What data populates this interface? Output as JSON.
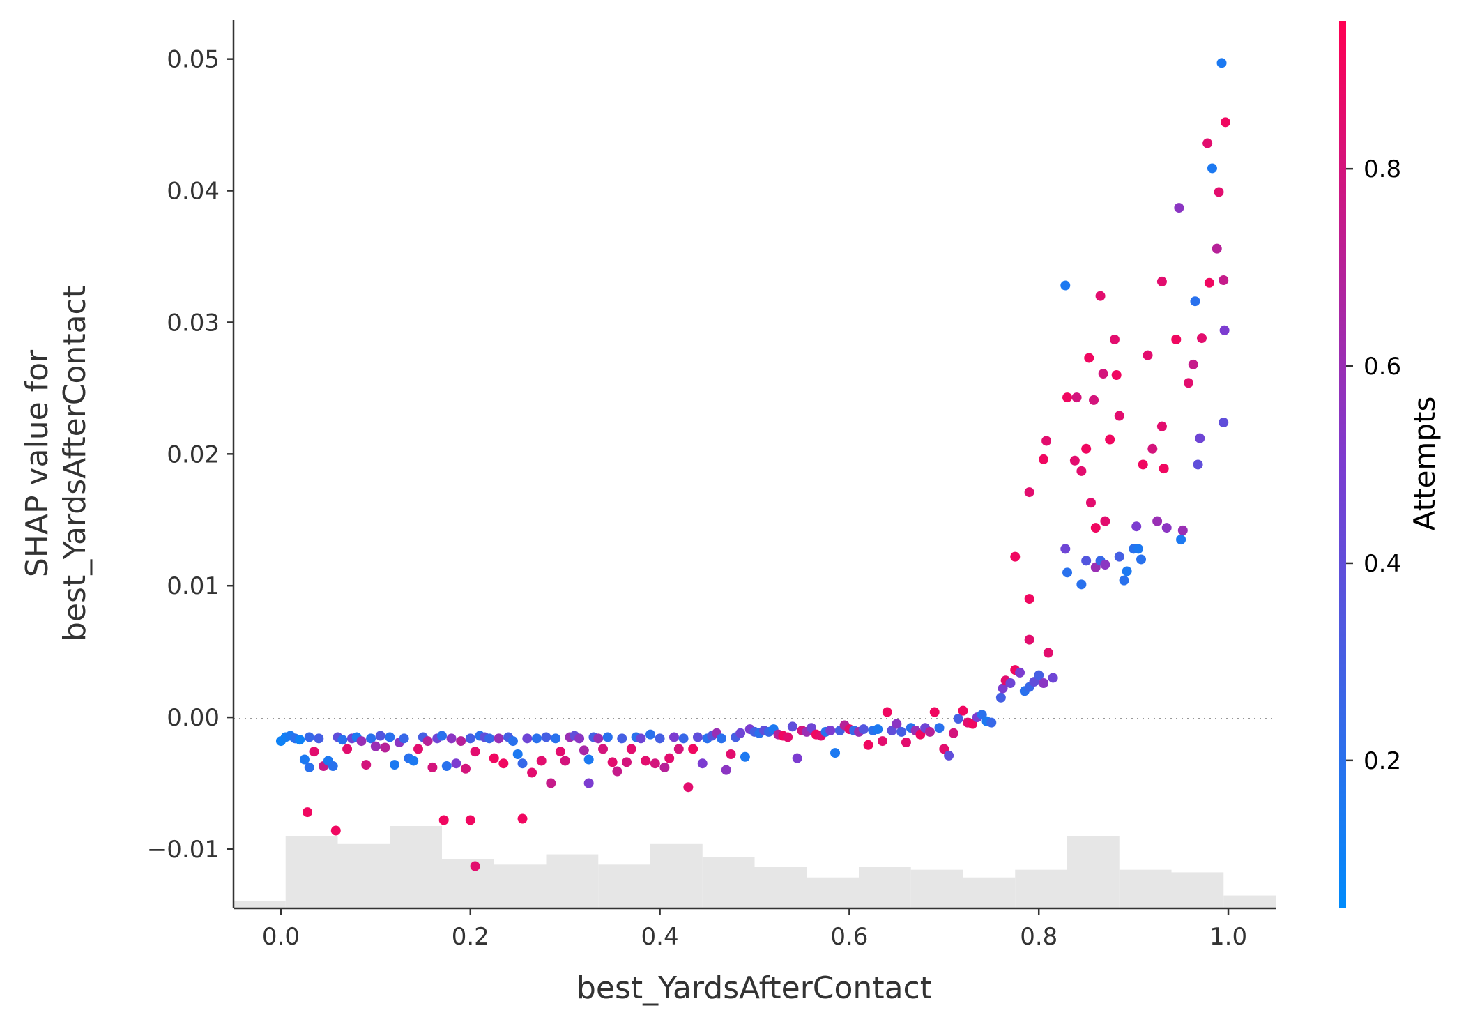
{
  "chart_data": {
    "type": "scatter",
    "xlabel": "best_YardsAfterContact",
    "ylabel_lines": [
      "SHAP value for",
      "best_YardsAfterContact"
    ],
    "xlim": [
      -0.05,
      1.05
    ],
    "ylim": [
      -0.0145,
      0.053
    ],
    "x_ticks": [
      0.0,
      0.2,
      0.4,
      0.6,
      0.8,
      1.0
    ],
    "x_tick_labels": [
      "0.0",
      "0.2",
      "0.4",
      "0.6",
      "0.8",
      "1.0"
    ],
    "y_ticks": [
      -0.01,
      0.0,
      0.01,
      0.02,
      0.03,
      0.04,
      0.05
    ],
    "y_tick_labels": [
      "−0.01",
      "0.00",
      "0.01",
      "0.02",
      "0.03",
      "0.04",
      "0.05"
    ],
    "zero_line": true,
    "grid": false,
    "colorbar": {
      "title": "Attempts",
      "range": [
        0.05,
        0.95
      ],
      "ticks": [
        0.2,
        0.4,
        0.6,
        0.8
      ],
      "tick_labels": [
        "0.2",
        "0.4",
        "0.6",
        "0.8"
      ],
      "colormap_low": "#008bfb",
      "colormap_mid": "#7c3cd0",
      "colormap_high": "#ff0052"
    },
    "histogram": {
      "color": "#e6e6e6",
      "bin_edges": [
        -0.05,
        0.005,
        0.06,
        0.115,
        0.17,
        0.225,
        0.28,
        0.335,
        0.39,
        0.445,
        0.5,
        0.555,
        0.61,
        0.665,
        0.72,
        0.775,
        0.83,
        0.885,
        0.94,
        0.995,
        1.05
      ],
      "counts": [
        3,
        28,
        25,
        32,
        19,
        17,
        21,
        17,
        25,
        20,
        16,
        12,
        16,
        15,
        12,
        15,
        28,
        15,
        14,
        5
      ]
    },
    "points": [
      {
        "x": 0.0,
        "y": -0.0018,
        "c": 0.1
      },
      {
        "x": 0.005,
        "y": -0.0015,
        "c": 0.12
      },
      {
        "x": 0.01,
        "y": -0.0014,
        "c": 0.15
      },
      {
        "x": 0.015,
        "y": -0.0016,
        "c": 0.2
      },
      {
        "x": 0.02,
        "y": -0.0017,
        "c": 0.1
      },
      {
        "x": 0.025,
        "y": -0.0032,
        "c": 0.15
      },
      {
        "x": 0.03,
        "y": -0.0038,
        "c": 0.2
      },
      {
        "x": 0.03,
        "y": -0.0015,
        "c": 0.25
      },
      {
        "x": 0.035,
        "y": -0.0026,
        "c": 0.85
      },
      {
        "x": 0.04,
        "y": -0.0016,
        "c": 0.3
      },
      {
        "x": 0.045,
        "y": -0.0037,
        "c": 0.75
      },
      {
        "x": 0.05,
        "y": -0.0033,
        "c": 0.15
      },
      {
        "x": 0.055,
        "y": -0.0037,
        "c": 0.2
      },
      {
        "x": 0.06,
        "y": -0.0015,
        "c": 0.4
      },
      {
        "x": 0.065,
        "y": -0.0017,
        "c": 0.2
      },
      {
        "x": 0.028,
        "y": -0.0072,
        "c": 0.9
      },
      {
        "x": 0.058,
        "y": -0.0086,
        "c": 0.9
      },
      {
        "x": 0.07,
        "y": -0.0024,
        "c": 0.85
      },
      {
        "x": 0.075,
        "y": -0.0016,
        "c": 0.45
      },
      {
        "x": 0.08,
        "y": -0.0015,
        "c": 0.15
      },
      {
        "x": 0.085,
        "y": -0.0018,
        "c": 0.6
      },
      {
        "x": 0.09,
        "y": -0.0036,
        "c": 0.8
      },
      {
        "x": 0.095,
        "y": -0.0016,
        "c": 0.2
      },
      {
        "x": 0.1,
        "y": -0.0022,
        "c": 0.6
      },
      {
        "x": 0.105,
        "y": -0.0014,
        "c": 0.35
      },
      {
        "x": 0.11,
        "y": -0.0023,
        "c": 0.7
      },
      {
        "x": 0.115,
        "y": -0.0015,
        "c": 0.2
      },
      {
        "x": 0.12,
        "y": -0.0036,
        "c": 0.15
      },
      {
        "x": 0.125,
        "y": -0.0019,
        "c": 0.55
      },
      {
        "x": 0.13,
        "y": -0.0016,
        "c": 0.25
      },
      {
        "x": 0.135,
        "y": -0.0031,
        "c": 0.2
      },
      {
        "x": 0.14,
        "y": -0.0033,
        "c": 0.15
      },
      {
        "x": 0.145,
        "y": -0.0024,
        "c": 0.85
      },
      {
        "x": 0.15,
        "y": -0.0015,
        "c": 0.3
      },
      {
        "x": 0.155,
        "y": -0.0018,
        "c": 0.7
      },
      {
        "x": 0.16,
        "y": -0.0038,
        "c": 0.8
      },
      {
        "x": 0.165,
        "y": -0.0016,
        "c": 0.45
      },
      {
        "x": 0.17,
        "y": -0.0014,
        "c": 0.2
      },
      {
        "x": 0.175,
        "y": -0.0037,
        "c": 0.2
      },
      {
        "x": 0.18,
        "y": -0.0016,
        "c": 0.55
      },
      {
        "x": 0.185,
        "y": -0.0035,
        "c": 0.5
      },
      {
        "x": 0.19,
        "y": -0.0018,
        "c": 0.7
      },
      {
        "x": 0.195,
        "y": -0.0039,
        "c": 0.8
      },
      {
        "x": 0.2,
        "y": -0.0016,
        "c": 0.3
      },
      {
        "x": 0.205,
        "y": -0.0026,
        "c": 0.85
      },
      {
        "x": 0.21,
        "y": -0.0014,
        "c": 0.2
      },
      {
        "x": 0.215,
        "y": -0.0015,
        "c": 0.4
      },
      {
        "x": 0.22,
        "y": -0.0016,
        "c": 0.25
      },
      {
        "x": 0.225,
        "y": -0.0031,
        "c": 0.9
      },
      {
        "x": 0.23,
        "y": -0.0016,
        "c": 0.6
      },
      {
        "x": 0.172,
        "y": -0.0078,
        "c": 0.9
      },
      {
        "x": 0.2,
        "y": -0.0078,
        "c": 0.9
      },
      {
        "x": 0.205,
        "y": -0.0113,
        "c": 0.85
      },
      {
        "x": 0.255,
        "y": -0.0077,
        "c": 0.9
      },
      {
        "x": 0.235,
        "y": -0.0035,
        "c": 0.9
      },
      {
        "x": 0.24,
        "y": -0.0015,
        "c": 0.3
      },
      {
        "x": 0.245,
        "y": -0.0018,
        "c": 0.2
      },
      {
        "x": 0.25,
        "y": -0.0028,
        "c": 0.15
      },
      {
        "x": 0.255,
        "y": -0.0035,
        "c": 0.25
      },
      {
        "x": 0.26,
        "y": -0.0016,
        "c": 0.45
      },
      {
        "x": 0.265,
        "y": -0.0042,
        "c": 0.85
      },
      {
        "x": 0.27,
        "y": -0.0016,
        "c": 0.2
      },
      {
        "x": 0.275,
        "y": -0.0033,
        "c": 0.85
      },
      {
        "x": 0.28,
        "y": -0.0015,
        "c": 0.3
      },
      {
        "x": 0.285,
        "y": -0.005,
        "c": 0.75
      },
      {
        "x": 0.29,
        "y": -0.0016,
        "c": 0.2
      },
      {
        "x": 0.295,
        "y": -0.0026,
        "c": 0.85
      },
      {
        "x": 0.3,
        "y": -0.0033,
        "c": 0.8
      },
      {
        "x": 0.305,
        "y": -0.0015,
        "c": 0.6
      },
      {
        "x": 0.31,
        "y": -0.0014,
        "c": 0.4
      },
      {
        "x": 0.315,
        "y": -0.0016,
        "c": 0.55
      },
      {
        "x": 0.32,
        "y": -0.0025,
        "c": 0.65
      },
      {
        "x": 0.325,
        "y": -0.0032,
        "c": 0.15
      },
      {
        "x": 0.325,
        "y": -0.005,
        "c": 0.5
      },
      {
        "x": 0.33,
        "y": -0.0015,
        "c": 0.3
      },
      {
        "x": 0.335,
        "y": -0.0016,
        "c": 0.6
      },
      {
        "x": 0.34,
        "y": -0.0024,
        "c": 0.8
      },
      {
        "x": 0.345,
        "y": -0.0015,
        "c": 0.2
      },
      {
        "x": 0.35,
        "y": -0.0034,
        "c": 0.85
      },
      {
        "x": 0.355,
        "y": -0.0041,
        "c": 0.75
      },
      {
        "x": 0.36,
        "y": -0.0016,
        "c": 0.3
      },
      {
        "x": 0.365,
        "y": -0.0034,
        "c": 0.8
      },
      {
        "x": 0.37,
        "y": -0.0024,
        "c": 0.85
      },
      {
        "x": 0.375,
        "y": -0.0015,
        "c": 0.2
      },
      {
        "x": 0.38,
        "y": -0.0016,
        "c": 0.45
      },
      {
        "x": 0.385,
        "y": -0.0033,
        "c": 0.85
      },
      {
        "x": 0.39,
        "y": -0.0013,
        "c": 0.2
      },
      {
        "x": 0.395,
        "y": -0.0035,
        "c": 0.8
      },
      {
        "x": 0.4,
        "y": -0.0016,
        "c": 0.3
      },
      {
        "x": 0.405,
        "y": -0.0038,
        "c": 0.7
      },
      {
        "x": 0.41,
        "y": -0.0031,
        "c": 0.85
      },
      {
        "x": 0.415,
        "y": -0.0015,
        "c": 0.5
      },
      {
        "x": 0.42,
        "y": -0.0024,
        "c": 0.8
      },
      {
        "x": 0.425,
        "y": -0.0016,
        "c": 0.25
      },
      {
        "x": 0.43,
        "y": -0.0053,
        "c": 0.85
      },
      {
        "x": 0.435,
        "y": -0.0024,
        "c": 0.9
      },
      {
        "x": 0.44,
        "y": -0.0015,
        "c": 0.4
      },
      {
        "x": 0.445,
        "y": -0.0035,
        "c": 0.5
      },
      {
        "x": 0.45,
        "y": -0.0016,
        "c": 0.2
      },
      {
        "x": 0.455,
        "y": -0.0014,
        "c": 0.35
      },
      {
        "x": 0.46,
        "y": -0.0012,
        "c": 0.6
      },
      {
        "x": 0.465,
        "y": -0.0016,
        "c": 0.2
      },
      {
        "x": 0.47,
        "y": -0.004,
        "c": 0.55
      },
      {
        "x": 0.475,
        "y": -0.0028,
        "c": 0.85
      },
      {
        "x": 0.48,
        "y": -0.0015,
        "c": 0.3
      },
      {
        "x": 0.485,
        "y": -0.0012,
        "c": 0.45
      },
      {
        "x": 0.49,
        "y": -0.003,
        "c": 0.15
      },
      {
        "x": 0.495,
        "y": -0.0009,
        "c": 0.5
      },
      {
        "x": 0.5,
        "y": -0.0011,
        "c": 0.3
      },
      {
        "x": 0.505,
        "y": -0.0012,
        "c": 0.2
      },
      {
        "x": 0.51,
        "y": -0.001,
        "c": 0.4
      },
      {
        "x": 0.515,
        "y": -0.0011,
        "c": 0.25
      },
      {
        "x": 0.52,
        "y": -0.0009,
        "c": 0.15
      },
      {
        "x": 0.525,
        "y": -0.0013,
        "c": 0.7
      },
      {
        "x": 0.53,
        "y": -0.0014,
        "c": 0.9
      },
      {
        "x": 0.535,
        "y": -0.0015,
        "c": 0.85
      },
      {
        "x": 0.54,
        "y": -0.0007,
        "c": 0.4
      },
      {
        "x": 0.545,
        "y": -0.0031,
        "c": 0.5
      },
      {
        "x": 0.55,
        "y": -0.001,
        "c": 0.8
      },
      {
        "x": 0.555,
        "y": -0.0011,
        "c": 0.6
      },
      {
        "x": 0.56,
        "y": -0.0008,
        "c": 0.45
      },
      {
        "x": 0.565,
        "y": -0.0013,
        "c": 0.9
      },
      {
        "x": 0.57,
        "y": -0.0014,
        "c": 0.85
      },
      {
        "x": 0.575,
        "y": -0.0011,
        "c": 0.2
      },
      {
        "x": 0.58,
        "y": -0.001,
        "c": 0.5
      },
      {
        "x": 0.585,
        "y": -0.0027,
        "c": 0.15
      },
      {
        "x": 0.59,
        "y": -0.001,
        "c": 0.3
      },
      {
        "x": 0.595,
        "y": -0.0006,
        "c": 0.7
      },
      {
        "x": 0.6,
        "y": -0.0009,
        "c": 0.85
      },
      {
        "x": 0.605,
        "y": -0.001,
        "c": 0.25
      },
      {
        "x": 0.61,
        "y": -0.0011,
        "c": 0.6
      },
      {
        "x": 0.615,
        "y": -0.0009,
        "c": 0.35
      },
      {
        "x": 0.62,
        "y": -0.0021,
        "c": 0.9
      },
      {
        "x": 0.625,
        "y": -0.001,
        "c": 0.2
      },
      {
        "x": 0.63,
        "y": -0.0009,
        "c": 0.15
      },
      {
        "x": 0.635,
        "y": -0.0018,
        "c": 0.85
      },
      {
        "x": 0.64,
        "y": 0.0004,
        "c": 0.9
      },
      {
        "x": 0.645,
        "y": -0.001,
        "c": 0.4
      },
      {
        "x": 0.65,
        "y": -0.0005,
        "c": 0.55
      },
      {
        "x": 0.655,
        "y": -0.0011,
        "c": 0.3
      },
      {
        "x": 0.66,
        "y": -0.0019,
        "c": 0.85
      },
      {
        "x": 0.665,
        "y": -0.0008,
        "c": 0.2
      },
      {
        "x": 0.67,
        "y": -0.001,
        "c": 0.6
      },
      {
        "x": 0.675,
        "y": -0.0013,
        "c": 0.9
      },
      {
        "x": 0.68,
        "y": -0.0008,
        "c": 0.45
      },
      {
        "x": 0.685,
        "y": -0.0011,
        "c": 0.7
      },
      {
        "x": 0.69,
        "y": 0.0004,
        "c": 0.9
      },
      {
        "x": 0.695,
        "y": -0.0008,
        "c": 0.2
      },
      {
        "x": 0.7,
        "y": -0.0024,
        "c": 0.85
      },
      {
        "x": 0.705,
        "y": -0.0029,
        "c": 0.4
      },
      {
        "x": 0.71,
        "y": -0.0012,
        "c": 0.8
      },
      {
        "x": 0.715,
        "y": -0.0001,
        "c": 0.3
      },
      {
        "x": 0.72,
        "y": 0.0005,
        "c": 0.9
      },
      {
        "x": 0.725,
        "y": -0.0004,
        "c": 0.85
      },
      {
        "x": 0.73,
        "y": -0.0005,
        "c": 0.9
      },
      {
        "x": 0.735,
        "y": 0.0,
        "c": 0.5
      },
      {
        "x": 0.74,
        "y": 0.0002,
        "c": 0.2
      },
      {
        "x": 0.745,
        "y": -0.0003,
        "c": 0.15
      },
      {
        "x": 0.75,
        "y": -0.0004,
        "c": 0.25
      },
      {
        "x": 0.76,
        "y": 0.0015,
        "c": 0.3
      },
      {
        "x": 0.762,
        "y": 0.0022,
        "c": 0.5
      },
      {
        "x": 0.765,
        "y": 0.0028,
        "c": 0.85
      },
      {
        "x": 0.77,
        "y": 0.0026,
        "c": 0.45
      },
      {
        "x": 0.775,
        "y": 0.0036,
        "c": 0.9
      },
      {
        "x": 0.78,
        "y": 0.0034,
        "c": 0.5
      },
      {
        "x": 0.785,
        "y": 0.002,
        "c": 0.2
      },
      {
        "x": 0.79,
        "y": 0.0023,
        "c": 0.25
      },
      {
        "x": 0.795,
        "y": 0.0027,
        "c": 0.4
      },
      {
        "x": 0.8,
        "y": 0.0032,
        "c": 0.3
      },
      {
        "x": 0.805,
        "y": 0.0026,
        "c": 0.55
      },
      {
        "x": 0.81,
        "y": 0.0049,
        "c": 0.85
      },
      {
        "x": 0.815,
        "y": 0.003,
        "c": 0.45
      },
      {
        "x": 0.79,
        "y": 0.0059,
        "c": 0.85
      },
      {
        "x": 0.79,
        "y": 0.009,
        "c": 0.9
      },
      {
        "x": 0.775,
        "y": 0.0122,
        "c": 0.9
      },
      {
        "x": 0.79,
        "y": 0.0171,
        "c": 0.85
      },
      {
        "x": 0.805,
        "y": 0.0196,
        "c": 0.9
      },
      {
        "x": 0.808,
        "y": 0.021,
        "c": 0.85
      },
      {
        "x": 0.828,
        "y": 0.0328,
        "c": 0.15
      },
      {
        "x": 0.83,
        "y": 0.0243,
        "c": 0.9
      },
      {
        "x": 0.838,
        "y": 0.0195,
        "c": 0.85
      },
      {
        "x": 0.84,
        "y": 0.0243,
        "c": 0.8
      },
      {
        "x": 0.845,
        "y": 0.0187,
        "c": 0.85
      },
      {
        "x": 0.85,
        "y": 0.0204,
        "c": 0.9
      },
      {
        "x": 0.853,
        "y": 0.0273,
        "c": 0.9
      },
      {
        "x": 0.855,
        "y": 0.0163,
        "c": 0.85
      },
      {
        "x": 0.858,
        "y": 0.0241,
        "c": 0.8
      },
      {
        "x": 0.86,
        "y": 0.0144,
        "c": 0.9
      },
      {
        "x": 0.865,
        "y": 0.032,
        "c": 0.85
      },
      {
        "x": 0.868,
        "y": 0.0261,
        "c": 0.8
      },
      {
        "x": 0.87,
        "y": 0.0149,
        "c": 0.85
      },
      {
        "x": 0.875,
        "y": 0.0211,
        "c": 0.9
      },
      {
        "x": 0.88,
        "y": 0.0287,
        "c": 0.85
      },
      {
        "x": 0.882,
        "y": 0.026,
        "c": 0.9
      },
      {
        "x": 0.885,
        "y": 0.0229,
        "c": 0.85
      },
      {
        "x": 0.828,
        "y": 0.0128,
        "c": 0.45
      },
      {
        "x": 0.83,
        "y": 0.011,
        "c": 0.2
      },
      {
        "x": 0.845,
        "y": 0.0101,
        "c": 0.2
      },
      {
        "x": 0.85,
        "y": 0.0119,
        "c": 0.35
      },
      {
        "x": 0.86,
        "y": 0.0114,
        "c": 0.6
      },
      {
        "x": 0.865,
        "y": 0.0119,
        "c": 0.25
      },
      {
        "x": 0.87,
        "y": 0.0116,
        "c": 0.55
      },
      {
        "x": 0.885,
        "y": 0.0122,
        "c": 0.3
      },
      {
        "x": 0.89,
        "y": 0.0104,
        "c": 0.2
      },
      {
        "x": 0.893,
        "y": 0.0111,
        "c": 0.15
      },
      {
        "x": 0.9,
        "y": 0.0128,
        "c": 0.2
      },
      {
        "x": 0.903,
        "y": 0.0145,
        "c": 0.5
      },
      {
        "x": 0.905,
        "y": 0.0128,
        "c": 0.15
      },
      {
        "x": 0.908,
        "y": 0.012,
        "c": 0.2
      },
      {
        "x": 0.91,
        "y": 0.0192,
        "c": 0.9
      },
      {
        "x": 0.915,
        "y": 0.0275,
        "c": 0.85
      },
      {
        "x": 0.92,
        "y": 0.0204,
        "c": 0.8
      },
      {
        "x": 0.925,
        "y": 0.0149,
        "c": 0.6
      },
      {
        "x": 0.93,
        "y": 0.0331,
        "c": 0.85
      },
      {
        "x": 0.93,
        "y": 0.0221,
        "c": 0.85
      },
      {
        "x": 0.932,
        "y": 0.0189,
        "c": 0.9
      },
      {
        "x": 0.935,
        "y": 0.0144,
        "c": 0.55
      },
      {
        "x": 0.945,
        "y": 0.0287,
        "c": 0.9
      },
      {
        "x": 0.948,
        "y": 0.0387,
        "c": 0.55
      },
      {
        "x": 0.95,
        "y": 0.0135,
        "c": 0.15
      },
      {
        "x": 0.952,
        "y": 0.0142,
        "c": 0.6
      },
      {
        "x": 0.958,
        "y": 0.0254,
        "c": 0.85
      },
      {
        "x": 0.963,
        "y": 0.0268,
        "c": 0.75
      },
      {
        "x": 0.965,
        "y": 0.0316,
        "c": 0.2
      },
      {
        "x": 0.968,
        "y": 0.0192,
        "c": 0.4
      },
      {
        "x": 0.97,
        "y": 0.0212,
        "c": 0.45
      },
      {
        "x": 0.972,
        "y": 0.0288,
        "c": 0.85
      },
      {
        "x": 0.978,
        "y": 0.0436,
        "c": 0.85
      },
      {
        "x": 0.98,
        "y": 0.033,
        "c": 0.9
      },
      {
        "x": 0.983,
        "y": 0.0417,
        "c": 0.15
      },
      {
        "x": 0.988,
        "y": 0.0356,
        "c": 0.7
      },
      {
        "x": 0.99,
        "y": 0.0399,
        "c": 0.85
      },
      {
        "x": 0.993,
        "y": 0.0497,
        "c": 0.15
      },
      {
        "x": 0.995,
        "y": 0.0332,
        "c": 0.75
      },
      {
        "x": 0.995,
        "y": 0.0224,
        "c": 0.4
      },
      {
        "x": 0.996,
        "y": 0.0294,
        "c": 0.5
      },
      {
        "x": 0.997,
        "y": 0.0452,
        "c": 0.9
      }
    ]
  }
}
